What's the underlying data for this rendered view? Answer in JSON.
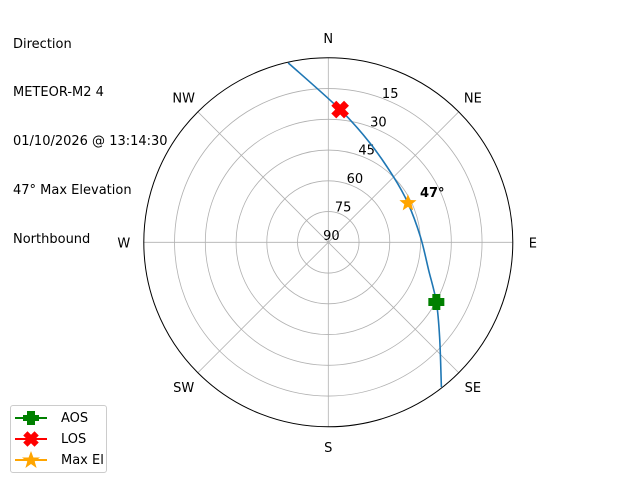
{
  "title_lines": [
    "Direction",
    "METEOR-M2 4",
    "01/10/2026 @ 13:14:30",
    "47° Max Elevation",
    "Northbound"
  ],
  "chart_data": {
    "type": "polar-line",
    "theta_direction": "clockwise",
    "theta_zero": "north",
    "radial_axis": "elevation (deg), 90 at center, 0 at edge",
    "direction_ticks": [
      "N",
      "NE",
      "E",
      "SE",
      "S",
      "SW",
      "W",
      "NW"
    ],
    "elevation_ticks": [
      15,
      30,
      45,
      60,
      75,
      90
    ],
    "rlim": [
      90,
      0
    ],
    "grid": true,
    "path": {
      "color": "#1f77b4",
      "points": [
        {
          "az": 142,
          "el": 0.4
        },
        {
          "az": 130.4,
          "el": 18.7
        },
        {
          "az": 118.9,
          "el": 29.8
        },
        {
          "az": 105.5,
          "el": 39.2
        },
        {
          "az": 86.5,
          "el": 45
        },
        {
          "az": 63.8,
          "el": 46.7
        },
        {
          "az": 44.7,
          "el": 44.9
        },
        {
          "az": 22.8,
          "el": 37.5
        },
        {
          "az": 5.1,
          "el": 25
        },
        {
          "az": 347.4,
          "el": 0.3
        }
      ]
    },
    "markers": [
      {
        "name": "AOS",
        "az": 118.9,
        "el": 29.8,
        "color": "#008000",
        "symbol": "plus"
      },
      {
        "name": "LOS",
        "az": 5.1,
        "el": 25,
        "color": "#ff0000",
        "symbol": "x"
      },
      {
        "name": "Max El",
        "az": 63.8,
        "el": 46.7,
        "color": "#ffa500",
        "symbol": "star"
      }
    ],
    "annotation": "47°",
    "legend_position": "lower-left"
  }
}
